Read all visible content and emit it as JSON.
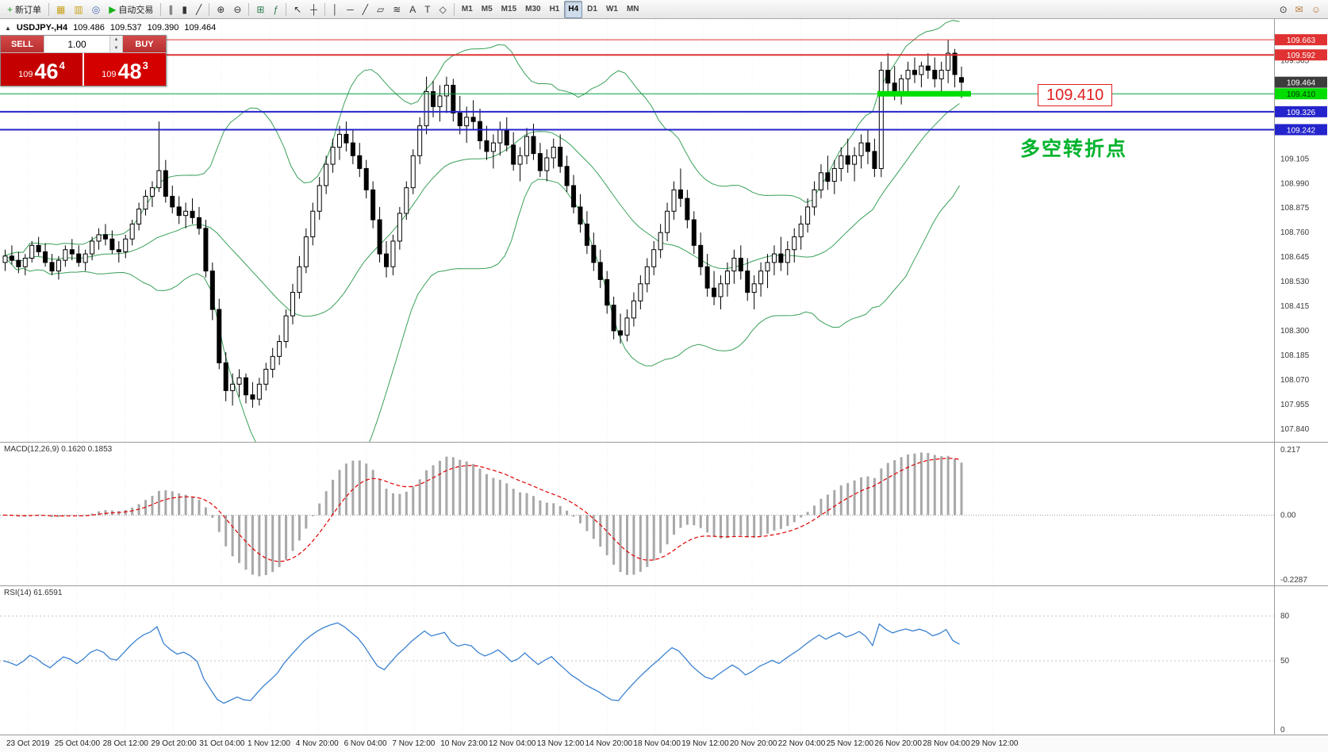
{
  "toolbar": {
    "items": [
      {
        "name": "new-order-button",
        "glyph": "+",
        "glyph_color": "#1e9e1e",
        "label": "新订单"
      },
      {
        "sep": true
      },
      {
        "name": "charts-window-icon",
        "glyph": "▦",
        "glyph_color": "#c8a018"
      },
      {
        "name": "profiles-icon",
        "glyph": "▥",
        "glyph_color": "#c8a018"
      },
      {
        "name": "refresh-icon",
        "glyph": "◎",
        "glyph_color": "#4868b0"
      },
      {
        "name": "auto-trading-button",
        "glyph": "▶",
        "glyph_color": "#18b018",
        "label": "自动交易"
      },
      {
        "sep": true
      },
      {
        "name": "bar-chart-icon",
        "glyph": "∥",
        "glyph_color": "#333333"
      },
      {
        "name": "candlestick-chart-icon",
        "glyph": "▮",
        "glyph_color": "#333333"
      },
      {
        "name": "line-chart-icon",
        "glyph": "╱",
        "glyph_color": "#333333"
      },
      {
        "sep": true
      },
      {
        "name": "zoom-in-icon",
        "glyph": "⊕",
        "glyph_color": "#333333"
      },
      {
        "name": "zoom-out-icon",
        "glyph": "⊖",
        "glyph_color": "#333333"
      },
      {
        "sep": true
      },
      {
        "name": "tile-windows-icon",
        "glyph": "⊞",
        "glyph_color": "#2f7d4f"
      },
      {
        "name": "indicators-icon",
        "glyph": "ƒ",
        "glyph_color": "#2f7d4f"
      },
      {
        "sep": true
      },
      {
        "name": "cursor-icon",
        "glyph": "↖",
        "glyph_color": "#333333"
      },
      {
        "name": "crosshair-icon",
        "glyph": "┼",
        "glyph_color": "#333333"
      },
      {
        "sep": true
      },
      {
        "name": "vertical-line-icon",
        "glyph": "│",
        "glyph_color": "#333333"
      },
      {
        "name": "horizontal-line-icon",
        "glyph": "─",
        "glyph_color": "#333333"
      },
      {
        "name": "trendline-icon",
        "glyph": "╱",
        "glyph_color": "#333333"
      },
      {
        "name": "equidistant-channel-icon",
        "glyph": "▱",
        "glyph_color": "#333333"
      },
      {
        "name": "fibonacci-icon",
        "glyph": "≋",
        "glyph_color": "#333333"
      },
      {
        "name": "text-icon",
        "glyph": "A",
        "glyph_color": "#333333"
      },
      {
        "name": "label-icon",
        "glyph": "T",
        "glyph_color": "#333333"
      },
      {
        "name": "shapes-icon",
        "glyph": "◇",
        "glyph_color": "#333333"
      },
      {
        "sep": true
      }
    ],
    "timeframes": [
      "M1",
      "M5",
      "M15",
      "M30",
      "H1",
      "H4",
      "D1",
      "W1",
      "MN"
    ],
    "active_timeframe": "H4",
    "right_items": [
      {
        "name": "search-icon",
        "glyph": "⊙",
        "glyph_color": "#333333"
      },
      {
        "name": "chat-icon",
        "glyph": "✉",
        "glyph_color": "#b87838"
      },
      {
        "name": "community-icon",
        "glyph": "☺",
        "glyph_color": "#b87838"
      }
    ]
  },
  "chart": {
    "symbol_line": {
      "collapse_icon": "▲",
      "symbol": "USDJPY-,H4",
      "open": "109.486",
      "high": "109.537",
      "low": "109.390",
      "close": "109.464"
    },
    "trade_panel": {
      "sell_label": "SELL",
      "buy_label": "BUY",
      "volume": "1.00",
      "sell_price": {
        "small": "109",
        "big": "46",
        "sup": "4"
      },
      "buy_price": {
        "small": "109",
        "big": "48",
        "sup": "3"
      }
    },
    "annotation": {
      "price_label": "109.410",
      "note": "多空转折点"
    }
  },
  "macd": {
    "label": "MACD(12,26,9) 0.1620 0.1853",
    "axis": [
      "0.217",
      "0.00",
      "-0.2287"
    ]
  },
  "rsi": {
    "label": "RSI(14) 61.6591",
    "axis": [
      "80",
      "50",
      "0"
    ],
    "levels": [
      80,
      50
    ]
  },
  "time_axis": {
    "x0": 8,
    "dx": 60.8,
    "labels": [
      "23 Oct 2019",
      "25 Oct 04:00",
      "28 Oct 12:00",
      "29 Oct 20:00",
      "31 Oct 04:00",
      "1 Nov 12:00",
      "4 Nov 20:00",
      "6 Nov 04:00",
      "7 Nov 12:00",
      "10 Nov 23:00",
      "12 Nov 04:00",
      "13 Nov 12:00",
      "14 Nov 20:00",
      "18 Nov 04:00",
      "19 Nov 12:00",
      "20 Nov 20:00",
      "22 Nov 04:00",
      "25 Nov 12:00",
      "26 Nov 20:00",
      "28 Nov 04:00",
      "29 Nov 12:00"
    ]
  },
  "chart_data": {
    "type": "candlestick",
    "symbol": "USDJPY-",
    "timeframe": "H4",
    "price_range": {
      "min": 107.78,
      "max": 109.76
    },
    "bar_spacing": 8.43,
    "x_offset": 4,
    "y_ticks": [
      "109.565",
      "109.105",
      "108.990",
      "108.875",
      "108.760",
      "108.645",
      "108.530",
      "108.415",
      "108.300",
      "108.185",
      "108.070",
      "107.955",
      "107.840"
    ],
    "bollinger": {
      "period": 20,
      "deviation": 2,
      "color": "#3aa05a"
    },
    "macd_params": {
      "fast": 12,
      "slow": 26,
      "signal": 9
    },
    "rsi_params": {
      "period": 14
    },
    "bid": 109.464,
    "levels": [
      {
        "price": 109.663,
        "label": "109.663",
        "line_color": "#e03232",
        "line_width": 1,
        "bg": "#e03232",
        "fg": "#ffffff"
      },
      {
        "price": 109.592,
        "label": "109.592",
        "line_color": "#e03232",
        "line_width": 2,
        "bg": "#e03232",
        "fg": "#ffffff"
      },
      {
        "price": 109.464,
        "label": "109.464",
        "line_color": null,
        "line_width": 0,
        "bg": "#3c3c3c",
        "fg": "#ffffff"
      },
      {
        "price": 109.41,
        "label": "109.410",
        "line_color": "#00a040",
        "line_width": 1,
        "bg": "#00dd00",
        "fg": "#003300"
      },
      {
        "price": 109.326,
        "label": "109.326",
        "line_color": "#2424cc",
        "line_width": 2,
        "bg": "#2424cc",
        "fg": "#ffffff"
      },
      {
        "price": 109.242,
        "label": "109.242",
        "line_color": "#2424cc",
        "line_width": 2,
        "bg": "#2424cc",
        "fg": "#ffffff"
      }
    ],
    "highlight": {
      "price": 109.41,
      "x_from": 1106,
      "x_to": 1224,
      "thickness": 7,
      "color": "#00dd00"
    },
    "ohlc": [
      [
        108.62,
        108.68,
        108.58,
        108.65
      ],
      [
        108.65,
        108.7,
        108.61,
        108.63
      ],
      [
        108.63,
        108.67,
        108.57,
        108.6
      ],
      [
        108.6,
        108.66,
        108.56,
        108.64
      ],
      [
        108.64,
        108.72,
        108.62,
        108.7
      ],
      [
        108.7,
        108.74,
        108.65,
        108.67
      ],
      [
        108.67,
        108.71,
        108.6,
        108.62
      ],
      [
        108.62,
        108.66,
        108.56,
        108.58
      ],
      [
        108.58,
        108.65,
        108.54,
        108.63
      ],
      [
        108.63,
        108.7,
        108.6,
        108.68
      ],
      [
        108.68,
        108.73,
        108.63,
        108.66
      ],
      [
        108.66,
        108.7,
        108.6,
        108.62
      ],
      [
        108.62,
        108.68,
        108.58,
        108.66
      ],
      [
        108.66,
        108.74,
        108.63,
        108.72
      ],
      [
        108.72,
        108.78,
        108.68,
        108.75
      ],
      [
        108.75,
        108.8,
        108.7,
        108.73
      ],
      [
        108.73,
        108.77,
        108.66,
        108.68
      ],
      [
        108.68,
        108.72,
        108.62,
        108.67
      ],
      [
        108.67,
        108.75,
        108.64,
        108.73
      ],
      [
        108.73,
        108.82,
        108.7,
        108.8
      ],
      [
        108.8,
        108.9,
        108.77,
        108.87
      ],
      [
        108.87,
        108.96,
        108.84,
        108.93
      ],
      [
        108.93,
        109.0,
        108.88,
        108.97
      ],
      [
        108.97,
        109.28,
        108.95,
        109.05
      ],
      [
        109.05,
        109.1,
        108.9,
        108.93
      ],
      [
        108.93,
        108.98,
        108.85,
        108.88
      ],
      [
        108.88,
        108.93,
        108.8,
        108.84
      ],
      [
        108.84,
        108.9,
        108.78,
        108.86
      ],
      [
        108.86,
        108.92,
        108.8,
        108.83
      ],
      [
        108.83,
        108.88,
        108.75,
        108.78
      ],
      [
        108.78,
        108.82,
        108.55,
        108.58
      ],
      [
        108.58,
        108.62,
        108.35,
        108.4
      ],
      [
        108.4,
        108.45,
        108.12,
        108.15
      ],
      [
        108.15,
        108.2,
        107.97,
        108.02
      ],
      [
        108.02,
        108.1,
        107.95,
        108.05
      ],
      [
        108.05,
        108.12,
        107.99,
        108.08
      ],
      [
        108.08,
        108.1,
        107.96,
        108.0
      ],
      [
        108.0,
        108.06,
        107.94,
        107.98
      ],
      [
        107.98,
        108.08,
        107.95,
        108.05
      ],
      [
        108.05,
        108.15,
        108.02,
        108.12
      ],
      [
        108.12,
        108.22,
        108.08,
        108.18
      ],
      [
        108.18,
        108.28,
        108.14,
        108.25
      ],
      [
        108.25,
        108.4,
        108.22,
        108.37
      ],
      [
        108.37,
        108.52,
        108.33,
        108.48
      ],
      [
        108.48,
        108.65,
        108.45,
        108.6
      ],
      [
        108.6,
        108.78,
        108.57,
        108.74
      ],
      [
        108.74,
        108.9,
        108.7,
        108.86
      ],
      [
        108.86,
        109.02,
        108.82,
        108.98
      ],
      [
        108.98,
        109.12,
        108.94,
        109.08
      ],
      [
        109.08,
        109.2,
        109.04,
        109.16
      ],
      [
        109.16,
        109.26,
        109.1,
        109.22
      ],
      [
        109.22,
        109.28,
        109.14,
        109.18
      ],
      [
        109.18,
        109.24,
        109.08,
        109.12
      ],
      [
        109.12,
        109.18,
        109.02,
        109.06
      ],
      [
        109.06,
        109.1,
        108.92,
        108.96
      ],
      [
        108.96,
        109.0,
        108.78,
        108.82
      ],
      [
        108.82,
        108.88,
        108.62,
        108.66
      ],
      [
        108.66,
        108.72,
        108.55,
        108.6
      ],
      [
        108.6,
        108.75,
        108.56,
        108.72
      ],
      [
        108.72,
        108.88,
        108.68,
        108.85
      ],
      [
        108.85,
        109.0,
        108.82,
        108.97
      ],
      [
        108.97,
        109.15,
        108.94,
        109.12
      ],
      [
        109.12,
        109.3,
        109.08,
        109.26
      ],
      [
        109.26,
        109.49,
        109.22,
        109.42
      ],
      [
        109.42,
        109.47,
        109.3,
        109.35
      ],
      [
        109.35,
        109.45,
        109.28,
        109.4
      ],
      [
        109.4,
        109.49,
        109.32,
        109.45
      ],
      [
        109.45,
        109.48,
        109.28,
        109.32
      ],
      [
        109.32,
        109.4,
        109.22,
        109.26
      ],
      [
        109.26,
        109.35,
        109.18,
        109.3
      ],
      [
        109.3,
        109.38,
        109.24,
        109.28
      ],
      [
        109.28,
        109.34,
        109.15,
        109.19
      ],
      [
        109.19,
        109.26,
        109.1,
        109.14
      ],
      [
        109.14,
        109.22,
        109.06,
        109.18
      ],
      [
        109.18,
        109.28,
        109.12,
        109.24
      ],
      [
        109.24,
        109.3,
        109.14,
        109.17
      ],
      [
        109.17,
        109.23,
        109.05,
        109.08
      ],
      [
        109.08,
        109.16,
        109.0,
        109.12
      ],
      [
        109.12,
        109.25,
        109.08,
        109.21
      ],
      [
        109.21,
        109.27,
        109.1,
        109.13
      ],
      [
        109.13,
        109.18,
        109.02,
        109.05
      ],
      [
        109.05,
        109.15,
        109.0,
        109.11
      ],
      [
        109.11,
        109.2,
        109.06,
        109.16
      ],
      [
        109.16,
        109.22,
        109.04,
        109.07
      ],
      [
        109.07,
        109.12,
        108.95,
        108.98
      ],
      [
        108.98,
        109.03,
        108.85,
        108.88
      ],
      [
        108.88,
        108.94,
        108.76,
        108.8
      ],
      [
        108.8,
        108.86,
        108.66,
        108.7
      ],
      [
        108.7,
        108.76,
        108.58,
        108.62
      ],
      [
        108.62,
        108.68,
        108.5,
        108.54
      ],
      [
        108.54,
        108.58,
        108.38,
        108.42
      ],
      [
        108.42,
        108.46,
        108.26,
        108.3
      ],
      [
        108.3,
        108.38,
        108.24,
        108.28
      ],
      [
        108.28,
        108.4,
        108.25,
        108.36
      ],
      [
        108.36,
        108.48,
        108.32,
        108.44
      ],
      [
        108.44,
        108.56,
        108.4,
        108.52
      ],
      [
        108.52,
        108.64,
        108.48,
        108.6
      ],
      [
        108.6,
        108.72,
        108.56,
        108.68
      ],
      [
        108.68,
        108.8,
        108.64,
        108.76
      ],
      [
        108.76,
        108.9,
        108.72,
        108.86
      ],
      [
        108.86,
        109.0,
        108.82,
        108.96
      ],
      [
        108.96,
        109.06,
        108.88,
        108.92
      ],
      [
        108.92,
        108.96,
        108.78,
        108.82
      ],
      [
        108.82,
        108.86,
        108.66,
        108.7
      ],
      [
        108.7,
        108.76,
        108.56,
        108.6
      ],
      [
        108.6,
        108.66,
        108.46,
        108.5
      ],
      [
        108.5,
        108.58,
        108.42,
        108.46
      ],
      [
        108.46,
        108.56,
        108.4,
        108.52
      ],
      [
        108.52,
        108.62,
        108.46,
        108.58
      ],
      [
        108.58,
        108.68,
        108.52,
        108.64
      ],
      [
        108.64,
        108.7,
        108.54,
        108.58
      ],
      [
        108.58,
        108.64,
        108.44,
        108.48
      ],
      [
        108.48,
        108.56,
        108.4,
        108.52
      ],
      [
        108.52,
        108.62,
        108.46,
        108.58
      ],
      [
        108.58,
        108.66,
        108.5,
        108.62
      ],
      [
        108.62,
        108.7,
        108.56,
        108.66
      ],
      [
        108.66,
        108.74,
        108.58,
        108.62
      ],
      [
        108.62,
        108.72,
        108.56,
        108.68
      ],
      [
        108.68,
        108.78,
        108.62,
        108.74
      ],
      [
        108.74,
        108.84,
        108.68,
        108.8
      ],
      [
        108.8,
        108.92,
        108.76,
        108.88
      ],
      [
        108.88,
        109.0,
        108.84,
        108.96
      ],
      [
        108.96,
        109.08,
        108.92,
        109.04
      ],
      [
        109.04,
        109.12,
        108.96,
        109.0
      ],
      [
        109.0,
        109.1,
        108.94,
        109.06
      ],
      [
        109.06,
        109.16,
        109.0,
        109.12
      ],
      [
        109.12,
        109.2,
        109.04,
        109.08
      ],
      [
        109.08,
        109.16,
        109.0,
        109.12
      ],
      [
        109.12,
        109.22,
        109.06,
        109.18
      ],
      [
        109.18,
        109.24,
        109.08,
        109.14
      ],
      [
        109.14,
        109.2,
        109.02,
        109.06
      ],
      [
        109.06,
        109.56,
        109.02,
        109.52
      ],
      [
        109.52,
        109.6,
        109.42,
        109.46
      ],
      [
        109.46,
        109.54,
        109.38,
        109.42
      ],
      [
        109.42,
        109.5,
        109.36,
        109.48
      ],
      [
        109.48,
        109.56,
        109.42,
        109.52
      ],
      [
        109.52,
        109.58,
        109.46,
        109.5
      ],
      [
        109.5,
        109.56,
        109.44,
        109.54
      ],
      [
        109.54,
        109.6,
        109.48,
        109.52
      ],
      [
        109.52,
        109.58,
        109.44,
        109.48
      ],
      [
        109.48,
        109.56,
        109.42,
        109.52
      ],
      [
        109.52,
        109.663,
        109.46,
        109.6
      ],
      [
        109.6,
        109.62,
        109.44,
        109.5
      ],
      [
        109.486,
        109.537,
        109.39,
        109.464
      ]
    ]
  }
}
